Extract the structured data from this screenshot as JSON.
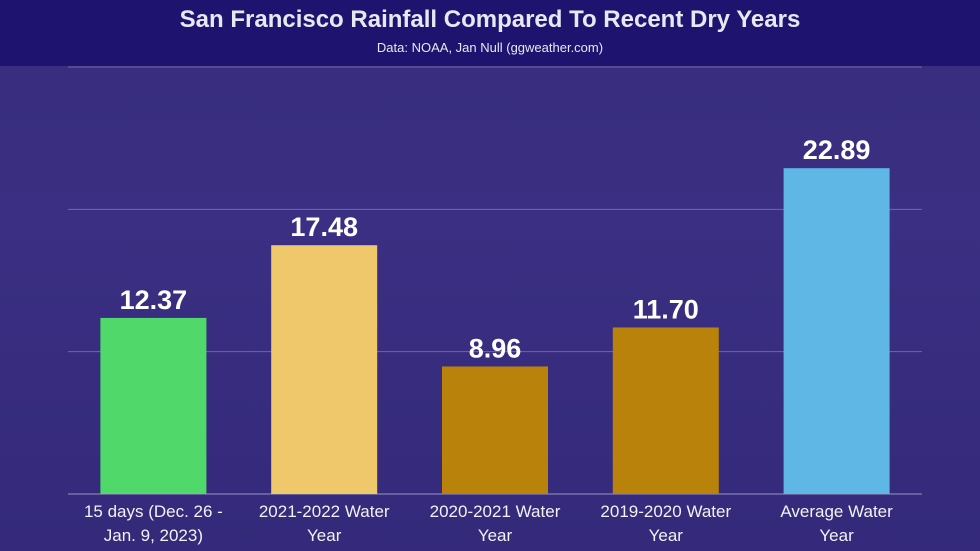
{
  "chart_data": {
    "type": "bar",
    "title": "San Francisco Rainfall Compared To Recent Dry Years",
    "subtitle": "Data: NOAA, Jan Null (ggweather.com)",
    "categories": [
      [
        "15 days (Dec. 26 -",
        "Jan. 9, 2023)"
      ],
      [
        "2021-2022 Water",
        "Year"
      ],
      [
        "2020-2021 Water",
        "Year"
      ],
      [
        "2019-2020 Water",
        "Year"
      ],
      [
        "Average Water",
        "Year"
      ]
    ],
    "values": [
      12.37,
      17.48,
      8.96,
      11.7,
      22.89
    ],
    "value_labels": [
      "12.37",
      "17.48",
      "8.96",
      "11.70",
      "22.89"
    ],
    "colors": [
      "#50d96a",
      "#f0c86c",
      "#b9820a",
      "#b9820a",
      "#5fb7e6"
    ],
    "xlabel": "",
    "ylabel": "",
    "ylim": [
      0,
      30
    ],
    "gridlines": [
      10,
      20,
      30
    ],
    "grid": true
  }
}
